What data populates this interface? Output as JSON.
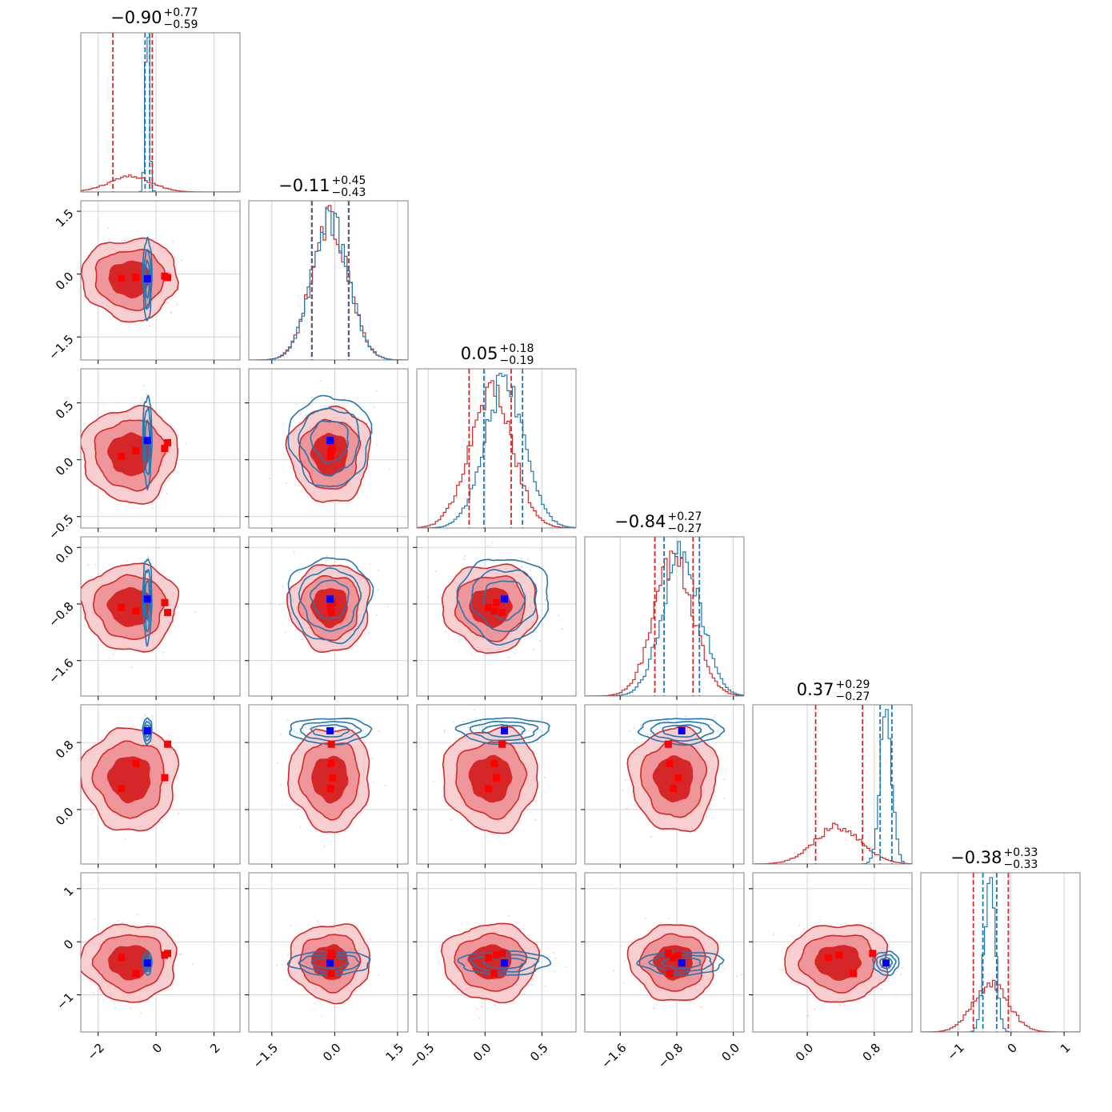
{
  "chart_data": {
    "type": "corner",
    "params": 6,
    "colors": {
      "red": "#d62728",
      "blue": "#1f77b4",
      "marker_red": "#ff0000",
      "marker_blue": "#0000ff"
    },
    "titles": [
      {
        "main": "−0.90",
        "up": "+0.77",
        "down": "−0.59"
      },
      {
        "main": "−0.11",
        "up": "+0.45",
        "down": "−0.43"
      },
      {
        "main": "0.05",
        "up": "+0.18",
        "down": "−0.19"
      },
      {
        "main": "−0.84",
        "up": "+0.27",
        "down": "−0.27"
      },
      {
        "main": "0.37",
        "up": "+0.29",
        "down": "−0.27"
      },
      {
        "main": "−0.38",
        "up": "+0.33",
        "down": "−0.33"
      }
    ],
    "ranges": [
      [
        -2.6,
        2.9
      ],
      [
        -2.05,
        1.75
      ],
      [
        -0.6,
        0.8
      ],
      [
        -2.1,
        0.15
      ],
      [
        -0.65,
        1.25
      ],
      [
        -1.7,
        1.3
      ]
    ],
    "ticks": [
      {
        "values": [
          -2,
          0,
          2
        ],
        "labels": [
          "−2",
          "0",
          "2"
        ]
      },
      {
        "values": [
          -1.5,
          0.0,
          1.5
        ],
        "labels": [
          "−1.5",
          "0.0",
          "1.5"
        ]
      },
      {
        "values": [
          -0.5,
          0.0,
          0.5
        ],
        "labels": [
          "−0.5",
          "0.0",
          "0.5"
        ]
      },
      {
        "values": [
          -1.6,
          -0.8,
          0.0
        ],
        "labels": [
          "−1.6",
          "−0.8",
          "0.0"
        ]
      },
      {
        "values": [
          0.0,
          0.8
        ],
        "labels": [
          "0.0",
          "0.8"
        ]
      },
      {
        "values": [
          -1,
          0,
          1
        ],
        "labels": [
          "−1",
          "0",
          "1"
        ]
      }
    ],
    "red_posterior": {
      "mean": [
        -0.9,
        -0.11,
        0.05,
        -0.84,
        0.37,
        -0.38
      ],
      "sigma": [
        0.75,
        0.44,
        0.19,
        0.28,
        0.28,
        0.33
      ],
      "quantiles": [
        [
          -1.49,
          -0.13
        ],
        [
          -0.54,
          0.34
        ],
        [
          -0.14,
          0.23
        ],
        [
          -1.11,
          -0.57
        ],
        [
          0.1,
          0.66
        ],
        [
          -0.71,
          -0.05
        ]
      ]
    },
    "blue_posterior": {
      "mean": [
        -0.3,
        -0.11,
        0.17,
        -0.73,
        0.94,
        -0.4
      ],
      "sigma": [
        0.07,
        0.44,
        0.18,
        0.27,
        0.07,
        0.1
      ],
      "quantiles": [
        [
          -0.38,
          -0.22
        ],
        [
          -0.55,
          0.33
        ],
        [
          -0.01,
          0.33
        ],
        [
          -0.98,
          -0.48
        ],
        [
          0.87,
          1.01
        ],
        [
          -0.53,
          -0.27
        ]
      ]
    },
    "truth_blue": [
      -0.3,
      -0.11,
      0.17,
      -0.73,
      0.94,
      -0.4
    ],
    "truth_red": [
      [
        -1.2,
        -0.1,
        0.03,
        -0.85,
        0.25,
        -0.3
      ],
      [
        -0.7,
        -0.08,
        0.08,
        -0.9,
        0.55,
        -0.6
      ],
      [
        0.3,
        -0.05,
        0.1,
        -0.78,
        0.38,
        -0.25
      ],
      [
        0.4,
        -0.08,
        0.15,
        -0.92,
        0.78,
        -0.22
      ]
    ]
  }
}
